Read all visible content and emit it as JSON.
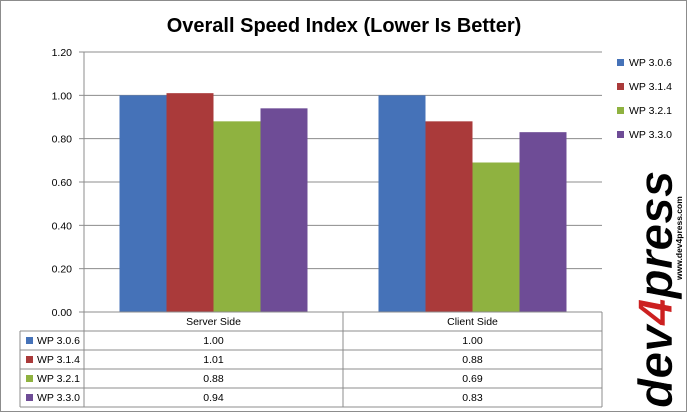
{
  "chart_data": {
    "type": "bar",
    "title": "Overall Speed Index (Lower Is Better)",
    "categories": [
      "Server Side",
      "Client Side"
    ],
    "series": [
      {
        "name": "WP 3.0.6",
        "values": [
          1.0,
          1.0
        ],
        "display": [
          "1.00",
          "1.00"
        ],
        "color": "#4572b8"
      },
      {
        "name": "WP 3.1.4",
        "values": [
          1.01,
          0.88
        ],
        "display": [
          "1.01",
          "0.88"
        ],
        "color": "#aa3a3a"
      },
      {
        "name": "WP 3.2.1",
        "values": [
          0.88,
          0.69
        ],
        "display": [
          "0.88",
          "0.69"
        ],
        "color": "#8fb240"
      },
      {
        "name": "WP 3.3.0",
        "values": [
          0.94,
          0.83
        ],
        "display": [
          "0.94",
          "0.83"
        ],
        "color": "#6e4c96"
      }
    ],
    "yticks": [
      "0.00",
      "0.20",
      "0.40",
      "0.60",
      "0.80",
      "1.00",
      "1.20"
    ],
    "ylim": [
      0,
      1.2
    ],
    "grid": true,
    "legend": "right",
    "data_table": true
  },
  "brand": {
    "logo": "dev4press",
    "url": "www.dev4press.com",
    "accent_color": "#cc2020"
  }
}
